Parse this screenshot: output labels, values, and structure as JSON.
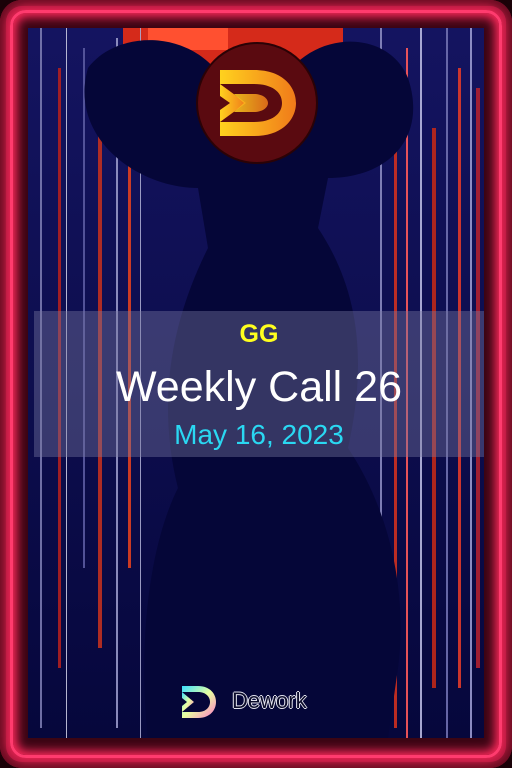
{
  "card": {
    "org_name": "GG",
    "title": "Weekly Call 26",
    "date": "May 16, 2023"
  },
  "logo": {
    "icon": "dework-d-logo-icon",
    "colors": [
      "#ffd21e",
      "#f07a1a"
    ]
  },
  "brand": {
    "name": "Dework",
    "icon": "dework-logo-icon"
  },
  "colors": {
    "frame": "#ff3b6e",
    "art_background": "#07084a",
    "org_text": "#ffff1e",
    "title_text": "#ffffff",
    "date_text": "#2ad8f2"
  }
}
